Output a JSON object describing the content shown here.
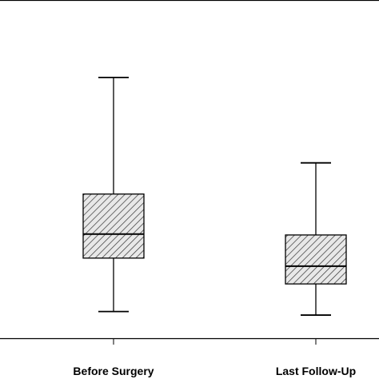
{
  "chart_data": {
    "type": "box",
    "categories": [
      "Before Surgery",
      "Last Follow-Up"
    ],
    "boxes": [
      {
        "category": "Before Surgery",
        "whisker_low": 1.5,
        "q1": 4.5,
        "median": 5.85,
        "q3": 8.1,
        "whisker_high": 14.65
      },
      {
        "category": "Last Follow-Up",
        "whisker_low": 1.3,
        "q1": 3.05,
        "median": 4.05,
        "q3": 5.8,
        "whisker_high": 9.85
      }
    ],
    "title": "",
    "xlabel": "",
    "ylabel": "",
    "ylim": [
      0,
      19
    ],
    "grid": false,
    "legend": "none",
    "colors": {
      "axis": "#000000",
      "box_fill": "#e8e8e8",
      "hatch": "#333333",
      "whisker": "#000000"
    }
  }
}
